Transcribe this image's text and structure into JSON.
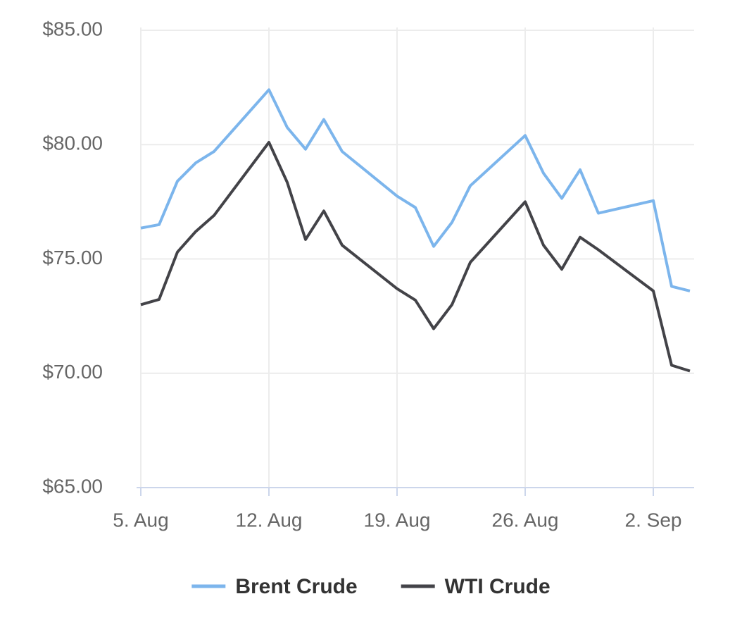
{
  "chart_data": {
    "type": "line",
    "x": [
      "08-05",
      "08-06",
      "08-07",
      "08-08",
      "08-09",
      "08-12",
      "08-13",
      "08-14",
      "08-15",
      "08-16",
      "08-19",
      "08-20",
      "08-21",
      "08-22",
      "08-23",
      "08-26",
      "08-27",
      "08-28",
      "08-29",
      "08-30",
      "09-02",
      "09-03",
      "09-04"
    ],
    "series": [
      {
        "name": "Brent Crude",
        "color": "#7cb5ec",
        "values": [
          76.35,
          76.5,
          78.4,
          79.2,
          79.7,
          82.4,
          80.75,
          79.8,
          81.1,
          79.7,
          77.75,
          77.25,
          75.55,
          76.6,
          78.2,
          80.4,
          78.75,
          77.65,
          78.9,
          77.0,
          77.55,
          73.8,
          73.6
        ]
      },
      {
        "name": "WTI Crude",
        "color": "#434348",
        "values": [
          73.0,
          73.23,
          75.3,
          76.2,
          76.9,
          80.1,
          78.35,
          75.85,
          77.1,
          75.6,
          73.7,
          73.2,
          71.95,
          73.0,
          74.85,
          77.5,
          75.6,
          74.55,
          75.95,
          75.4,
          73.6,
          70.35,
          70.1
        ]
      }
    ],
    "xlim": [
      "08-05",
      "09-04"
    ],
    "xticks": [
      {
        "value": "08-05",
        "label": "5. Aug"
      },
      {
        "value": "08-12",
        "label": "12. Aug"
      },
      {
        "value": "08-19",
        "label": "19. Aug"
      },
      {
        "value": "08-26",
        "label": "26. Aug"
      },
      {
        "value": "09-02",
        "label": "2. Sep"
      }
    ],
    "ylim": [
      65,
      85
    ],
    "yticks": [
      {
        "value": 65,
        "label": "$65.00"
      },
      {
        "value": 70,
        "label": "$70.00"
      },
      {
        "value": 75,
        "label": "$75.00"
      },
      {
        "value": 80,
        "label": "$80.00"
      },
      {
        "value": 85,
        "label": "$85.00"
      }
    ],
    "grid": true,
    "legend": "bottom"
  }
}
